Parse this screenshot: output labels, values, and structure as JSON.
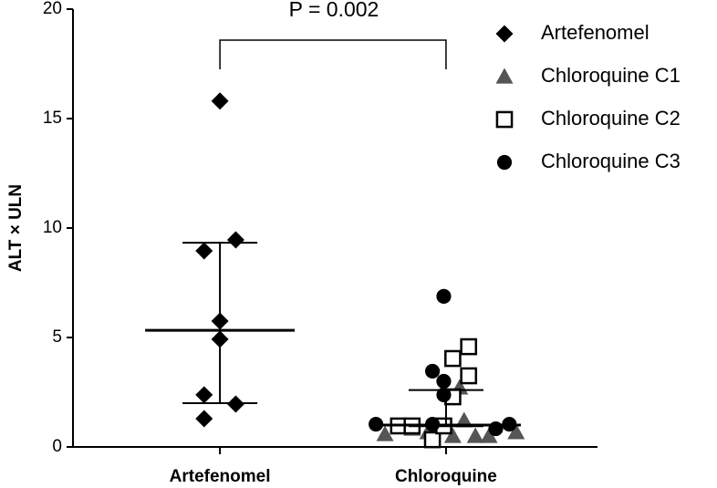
{
  "chart_data": {
    "type": "scatter",
    "y_label": "ALT × ULN",
    "annotation": "P = 0.002",
    "xlim": [
      0.35,
      2.67
    ],
    "xticks": [
      {
        "value": 1,
        "label": "Artefenomel"
      },
      {
        "value": 2,
        "label": "Chloroquine"
      }
    ],
    "ylim": [
      0,
      20
    ],
    "yticks": [
      0,
      5,
      10,
      15,
      20
    ],
    "series": [
      {
        "name": "Artefenomel",
        "color": "#000000",
        "marker": "diamond",
        "x": [
          1.0,
          1.07,
          0.93,
          1.0,
          1.0,
          0.93,
          1.07,
          0.93
        ],
        "values": [
          15.8,
          9.46,
          8.96,
          5.75,
          4.92,
          2.38,
          1.96,
          1.29
        ]
      },
      {
        "name": "Chloroquine C1",
        "color": "#555555",
        "marker": "triangle",
        "x": [
          2.06,
          2.31,
          2.19,
          2.13,
          2.08,
          2.03,
          1.92,
          1.85,
          1.73
        ],
        "values": [
          2.71,
          0.67,
          0.5,
          0.5,
          1.21,
          0.5,
          0.67,
          0.83,
          0.58
        ]
      },
      {
        "name": "Chloroquine C2",
        "color": "#000000",
        "marker": "square",
        "x": [
          2.1,
          2.03,
          2.1,
          2.03,
          1.79,
          1.85,
          1.94,
          1.99
        ],
        "values": [
          4.58,
          4.04,
          3.25,
          2.29,
          0.96,
          0.96,
          0.33,
          0.96
        ]
      },
      {
        "name": "Chloroquine C3",
        "color": "#000000",
        "marker": "circle",
        "x": [
          1.99,
          1.94,
          1.99,
          1.99,
          1.69,
          1.94,
          2.22,
          2.28
        ],
        "values": [
          6.88,
          3.46,
          3.0,
          2.38,
          1.04,
          1.04,
          0.83,
          1.04
        ]
      }
    ],
    "summary": [
      {
        "x": 1,
        "median": 5.33,
        "upper": 9.33,
        "lower": 2.0
      },
      {
        "x": 2,
        "median": 1.0,
        "upper": 2.6,
        "lower": 0.95
      }
    ]
  }
}
